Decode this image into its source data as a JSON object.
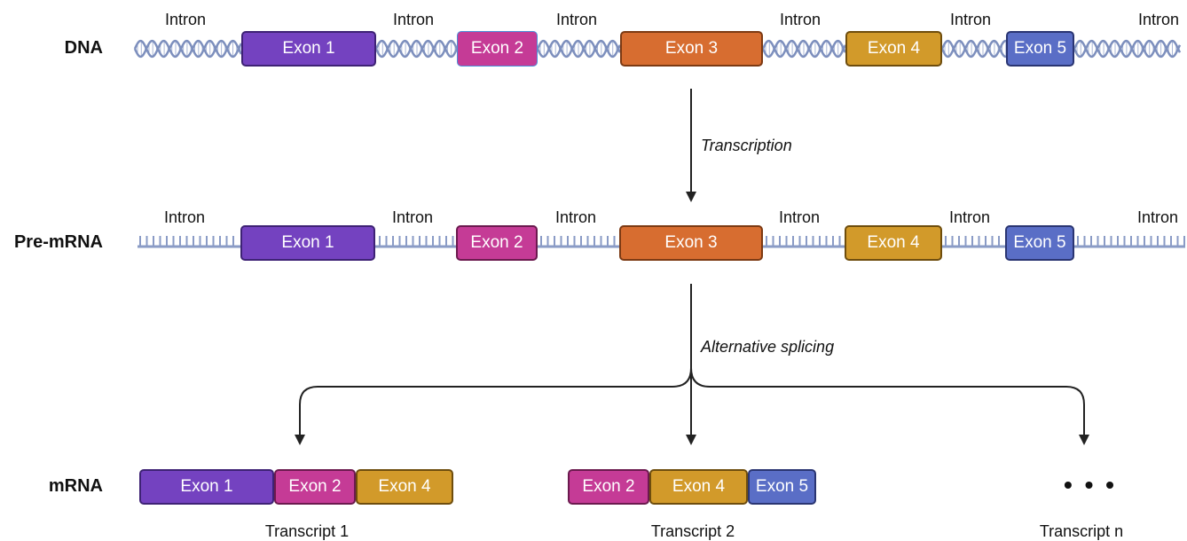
{
  "dna": {
    "label": "DNA",
    "introns": [
      "Intron",
      "Intron",
      "Intron",
      "Intron",
      "Intron",
      "Intron"
    ],
    "exons": [
      "Exon 1",
      "Exon 2",
      "Exon 3",
      "Exon 4",
      "Exon 5"
    ]
  },
  "transcription": {
    "label": "Transcription"
  },
  "pre_mrna": {
    "label": "Pre-mRNA",
    "introns": [
      "Intron",
      "Intron",
      "Intron",
      "Intron",
      "Intron",
      "Intron"
    ],
    "exons": [
      "Exon 1",
      "Exon 2",
      "Exon 3",
      "Exon 4",
      "Exon 5"
    ]
  },
  "splicing": {
    "label": "Alternative splicing"
  },
  "mrna": {
    "label": "mRNA",
    "transcripts": [
      {
        "label": "Transcript 1",
        "exons": [
          "Exon 1",
          "Exon 2",
          "Exon 4"
        ]
      },
      {
        "label": "Transcript 2",
        "exons": [
          "Exon 2",
          "Exon 4",
          "Exon 5"
        ]
      },
      {
        "label": "Transcript n",
        "ellipsis": "• • •"
      }
    ]
  },
  "colors": {
    "exon1": "#7442c0",
    "exon2": "#c53b96",
    "exon3": "#d76d30",
    "exon4": "#d29a2a",
    "exon5": "#5a6ec6",
    "backbone": "#8a9bc6"
  }
}
